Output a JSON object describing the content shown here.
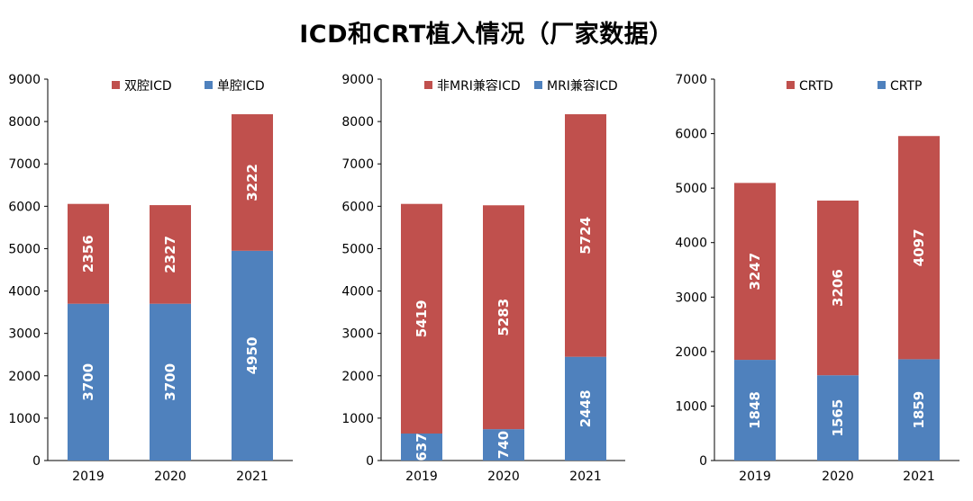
{
  "title": "ICD和CRT植入情况（厂家数据）",
  "colors": {
    "red": "#C0504D",
    "blue": "#4F81BD"
  },
  "chart_data": [
    {
      "type": "bar",
      "stacked": true,
      "categories": [
        "2019",
        "2020",
        "2021"
      ],
      "ylim": [
        0,
        9000
      ],
      "yticks": [
        0,
        1000,
        2000,
        3000,
        4000,
        5000,
        6000,
        7000,
        8000,
        9000
      ],
      "legend": [
        "双腔ICD",
        "单腔ICD"
      ],
      "series": [
        {
          "name": "单腔ICD",
          "color": "#4F81BD",
          "values": [
            3700,
            3700,
            4950
          ]
        },
        {
          "name": "双腔ICD",
          "color": "#C0504D",
          "values": [
            2356,
            2327,
            3222
          ]
        }
      ]
    },
    {
      "type": "bar",
      "stacked": true,
      "categories": [
        "2019",
        "2020",
        "2021"
      ],
      "ylim": [
        0,
        9000
      ],
      "yticks": [
        0,
        1000,
        2000,
        3000,
        4000,
        5000,
        6000,
        7000,
        8000,
        9000
      ],
      "legend": [
        "非MRI兼容ICD",
        "MRI兼容ICD"
      ],
      "series": [
        {
          "name": "MRI兼容ICD",
          "color": "#4F81BD",
          "values": [
            637,
            740,
            2448
          ]
        },
        {
          "name": "非MRI兼容ICD",
          "color": "#C0504D",
          "values": [
            5419,
            5283,
            5724
          ]
        }
      ]
    },
    {
      "type": "bar",
      "stacked": true,
      "categories": [
        "2019",
        "2020",
        "2021"
      ],
      "ylim": [
        0,
        7000
      ],
      "yticks": [
        0,
        1000,
        2000,
        3000,
        4000,
        5000,
        6000,
        7000
      ],
      "legend": [
        "CRTD",
        "CRTP"
      ],
      "series": [
        {
          "name": "CRTP",
          "color": "#4F81BD",
          "values": [
            1848,
            1565,
            1859
          ]
        },
        {
          "name": "CRTD",
          "color": "#C0504D",
          "values": [
            3247,
            3206,
            4097
          ]
        }
      ]
    }
  ]
}
